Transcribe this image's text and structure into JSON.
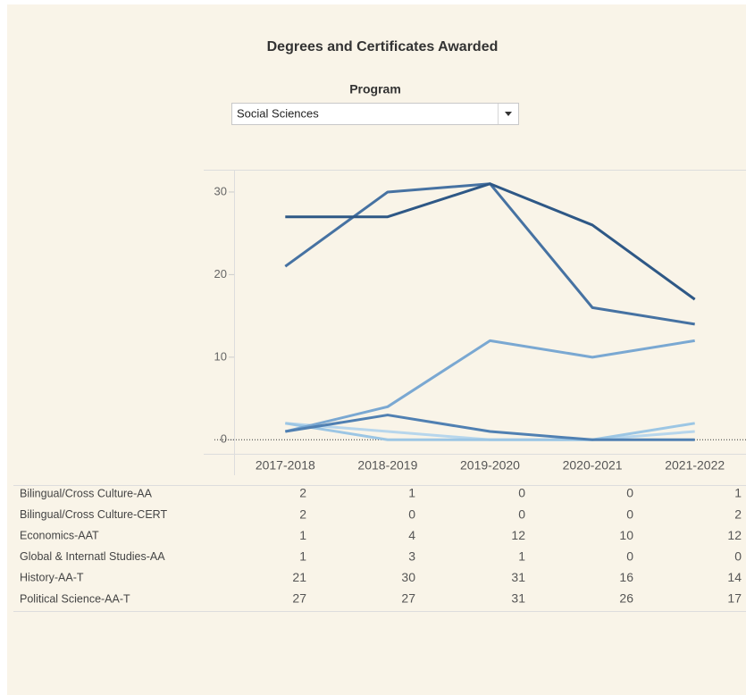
{
  "chart_data": {
    "type": "line",
    "title": "Degrees and Certificates Awarded",
    "filter": {
      "label": "Program",
      "value": "Social Sciences"
    },
    "categories": [
      "2017-2018",
      "2018-2019",
      "2019-2020",
      "2020-2021",
      "2021-2022"
    ],
    "series": [
      {
        "name": "Bilingual/Cross Culture-AA",
        "color": "#b7d6ec",
        "values": [
          2,
          1,
          0,
          0,
          1
        ]
      },
      {
        "name": "Bilingual/Cross Culture-CERT",
        "color": "#9cc6e4",
        "values": [
          2,
          0,
          0,
          0,
          2
        ]
      },
      {
        "name": "Economics-AAT",
        "color": "#7aa8d2",
        "values": [
          1,
          4,
          12,
          10,
          12
        ]
      },
      {
        "name": "Global & Internatl Studies-AA",
        "color": "#5080b2",
        "values": [
          1,
          3,
          1,
          0,
          0
        ]
      },
      {
        "name": "History-AA-T",
        "color": "#4672a2",
        "values": [
          21,
          30,
          31,
          16,
          14
        ]
      },
      {
        "name": "Political Science-AA-T",
        "color": "#2e5886",
        "values": [
          27,
          27,
          31,
          26,
          17
        ]
      }
    ],
    "ylim": [
      -1.7,
      32.7
    ],
    "yticks": [
      0,
      10,
      20,
      30
    ],
    "zero_line": true
  }
}
